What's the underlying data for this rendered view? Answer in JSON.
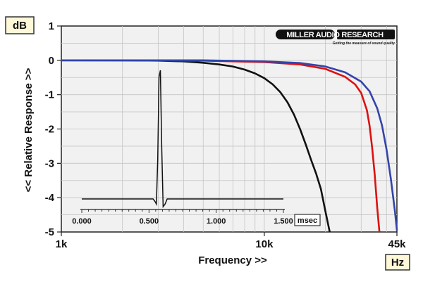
{
  "chart_data": {
    "type": "line",
    "title": "",
    "xlabel": "Frequency >>",
    "ylabel": "<< Relative Response >>",
    "x_unit": "Hz",
    "y_unit": "dB",
    "x_scale": "log",
    "xlim": [
      1000,
      45000
    ],
    "ylim": [
      -5,
      1
    ],
    "x_ticks": [
      1000,
      10000,
      45000
    ],
    "x_tick_labels": [
      "1k",
      "10k",
      "45k"
    ],
    "y_ticks": [
      1,
      0,
      -1,
      -2,
      -3,
      -4,
      -5
    ],
    "y_tick_labels": [
      "1",
      "0",
      "-1",
      "-2",
      "-3",
      "-4",
      "-5"
    ],
    "grid": true,
    "series": [
      {
        "color": "#111111",
        "x": [
          1000,
          2000,
          3000,
          4000,
          5000,
          6000,
          7000,
          8000,
          9000,
          10000,
          11000,
          12000,
          13000,
          14000,
          15000,
          16000,
          17000,
          18000,
          19000,
          20000,
          21000
        ],
        "y": [
          0.0,
          0.0,
          -0.01,
          -0.03,
          -0.07,
          -0.12,
          -0.18,
          -0.27,
          -0.38,
          -0.52,
          -0.7,
          -0.93,
          -1.22,
          -1.58,
          -2.0,
          -2.45,
          -2.9,
          -3.3,
          -3.75,
          -4.4,
          -5.0
        ]
      },
      {
        "color": "#dd1111",
        "x": [
          1000,
          5000,
          10000,
          15000,
          20000,
          25000,
          28000,
          30000,
          32000,
          33000,
          34000,
          35000,
          36000,
          36900
        ],
        "y": [
          0.0,
          -0.01,
          -0.05,
          -0.12,
          -0.25,
          -0.48,
          -0.7,
          -0.95,
          -1.45,
          -1.9,
          -2.55,
          -3.35,
          -4.3,
          -5.0
        ]
      },
      {
        "color": "#3344aa",
        "x": [
          1000,
          5000,
          10000,
          15000,
          20000,
          25000,
          30000,
          33000,
          36000,
          38000,
          40000,
          42000,
          44000,
          45000
        ],
        "y": [
          0.0,
          0.0,
          -0.03,
          -0.08,
          -0.18,
          -0.35,
          -0.62,
          -0.9,
          -1.4,
          -1.9,
          -2.6,
          -3.45,
          -4.4,
          -4.95
        ]
      }
    ],
    "annotations": {
      "logo_text": "MILLER AUDIO RESEARCH",
      "logo_tagline": "Getting the measure of sound quality"
    },
    "inset": {
      "type": "line",
      "description_role": "impulse response",
      "x_unit": "msec",
      "xlim": [
        0.0,
        1.5
      ],
      "x_ticks": [
        0.0,
        0.5,
        1.0,
        1.5
      ],
      "x_tick_labels": [
        "0.000",
        "0.500",
        "1.000",
        "1.500"
      ],
      "color": "#111111",
      "x": [
        0.0,
        0.53,
        0.545,
        0.555,
        0.565,
        0.575,
        0.585,
        0.595,
        0.605,
        0.62,
        0.635,
        1.5
      ],
      "y": [
        0.0,
        0.0,
        -0.02,
        -0.04,
        0.3,
        0.95,
        1.0,
        0.4,
        -0.06,
        -0.04,
        0.0,
        0.0
      ]
    }
  }
}
